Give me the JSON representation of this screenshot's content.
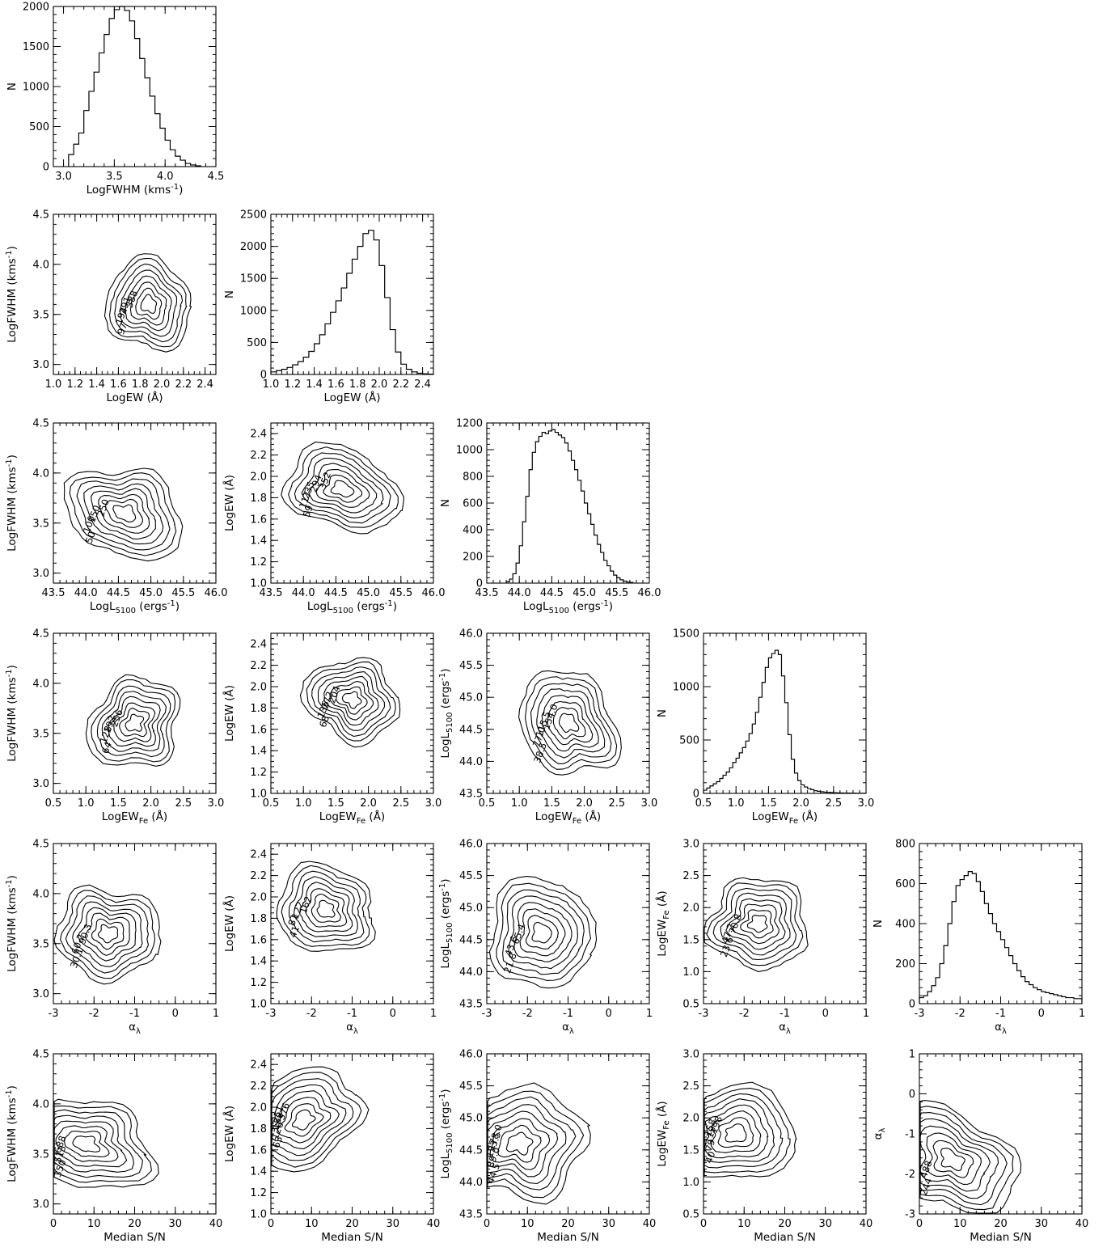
{
  "chart_data": {
    "type": "corner",
    "variables": [
      {
        "label": "LogFWHM (kms",
        "sup": "-1",
        "sub": "",
        "suffix": ")",
        "range": [
          2.9,
          4.5
        ],
        "ticks": [
          "3.0",
          "3.5",
          "4.0",
          "4.5"
        ],
        "tick_values": [
          3.0,
          3.5,
          4.0,
          4.5
        ],
        "minor": 0.1,
        "peak": 3.6,
        "sigma": 0.2
      },
      {
        "label": "LogEW (Å)",
        "sup": "",
        "sub": "",
        "suffix": "",
        "range": [
          1.0,
          2.5
        ],
        "ticks": [
          "1.0",
          "1.2",
          "1.4",
          "1.6",
          "1.8",
          "2.0",
          "2.2",
          "2.4"
        ],
        "tick_values": [
          1.0,
          1.2,
          1.4,
          1.6,
          1.8,
          2.0,
          2.2,
          2.4
        ],
        "minor": 0.05,
        "peak": 1.88,
        "sigma": 0.17
      },
      {
        "label": "LogL",
        "sup": "",
        "sub": "5100",
        "suffix": " (ergs",
        "suffix_sup": "-1",
        "suffix_end": ")",
        "range": [
          43.5,
          46.0
        ],
        "ticks": [
          "43.5",
          "44.0",
          "44.5",
          "45.0",
          "45.5",
          "46.0"
        ],
        "tick_values": [
          43.5,
          44.0,
          44.5,
          45.0,
          45.5,
          46.0
        ],
        "minor": 0.1,
        "peak": 44.6,
        "sigma": 0.38
      },
      {
        "label": "LogEW",
        "sup": "",
        "sub": "Fe",
        "suffix": " (Å)",
        "range": [
          0.5,
          3.0
        ],
        "ticks": [
          "0.5",
          "1.0",
          "1.5",
          "2.0",
          "2.5",
          "3.0"
        ],
        "tick_values": [
          0.5,
          1.0,
          1.5,
          2.0,
          2.5,
          3.0
        ],
        "minor": 0.1,
        "peak": 1.75,
        "sigma": 0.3
      },
      {
        "label": "α",
        "sup": "",
        "sub": "λ",
        "suffix": "",
        "range": [
          -3,
          1
        ],
        "ticks": [
          "-3",
          "-2",
          "-1",
          "0",
          "1"
        ],
        "tick_values": [
          -3,
          -2,
          -1,
          0,
          1
        ],
        "minor": 0.2,
        "peak": -1.65,
        "sigma": 0.55
      },
      {
        "label": "Median S/N",
        "sup": "",
        "sub": "",
        "suffix": "",
        "range": [
          0,
          40
        ],
        "ticks": [
          "0",
          "10",
          "20",
          "30",
          "40"
        ],
        "tick_values": [
          0,
          10,
          20,
          30,
          40
        ],
        "minor": 2,
        "peak": 8,
        "sigma": 7
      }
    ],
    "histograms": [
      {
        "variable": 0,
        "ylabel": "N",
        "ylim": [
          0,
          2000
        ],
        "yticks": [
          0,
          500,
          1000,
          1500,
          2000
        ],
        "x": [
          3.05,
          3.1,
          3.15,
          3.2,
          3.25,
          3.3,
          3.35,
          3.4,
          3.45,
          3.5,
          3.55,
          3.6,
          3.65,
          3.7,
          3.75,
          3.8,
          3.85,
          3.9,
          3.95,
          4.0,
          4.05,
          4.1,
          4.15,
          4.2,
          4.25,
          4.3
        ],
        "values": [
          150,
          280,
          420,
          700,
          940,
          1180,
          1420,
          1650,
          1850,
          1960,
          2000,
          1950,
          1820,
          1600,
          1350,
          1110,
          880,
          660,
          480,
          330,
          210,
          130,
          80,
          40,
          20,
          10
        ]
      },
      {
        "variable": 1,
        "ylabel": "N",
        "ylim": [
          0,
          2500
        ],
        "yticks": [
          0,
          500,
          1000,
          1500,
          2000,
          2500
        ],
        "x": [
          1.0,
          1.05,
          1.1,
          1.15,
          1.2,
          1.25,
          1.3,
          1.35,
          1.4,
          1.45,
          1.5,
          1.55,
          1.6,
          1.65,
          1.7,
          1.75,
          1.8,
          1.85,
          1.9,
          1.95,
          2.0,
          2.05,
          2.1,
          2.15,
          2.2,
          2.25,
          2.3,
          2.35,
          2.4,
          2.45
        ],
        "values": [
          40,
          60,
          80,
          110,
          150,
          200,
          270,
          360,
          480,
          620,
          790,
          970,
          1150,
          1350,
          1580,
          1800,
          2000,
          2200,
          2250,
          2100,
          1700,
          1200,
          700,
          350,
          160,
          80,
          40,
          20,
          10,
          5
        ]
      },
      {
        "variable": 2,
        "ylabel": "N",
        "ylim": [
          0,
          1200
        ],
        "yticks": [
          0,
          200,
          400,
          600,
          800,
          1000,
          1200
        ],
        "x": [
          43.8,
          43.85,
          43.9,
          43.95,
          44.0,
          44.05,
          44.1,
          44.15,
          44.2,
          44.25,
          44.3,
          44.35,
          44.4,
          44.45,
          44.5,
          44.55,
          44.6,
          44.65,
          44.7,
          44.75,
          44.8,
          44.85,
          44.9,
          44.95,
          45.0,
          45.05,
          45.1,
          45.15,
          45.2,
          45.25,
          45.3,
          45.35,
          45.4,
          45.45,
          45.5,
          45.55,
          45.6,
          45.65,
          45.7
        ],
        "values": [
          10,
          30,
          70,
          150,
          280,
          460,
          650,
          850,
          980,
          1060,
          1100,
          1130,
          1120,
          1140,
          1150,
          1130,
          1110,
          1090,
          1050,
          990,
          920,
          850,
          770,
          690,
          600,
          520,
          440,
          360,
          290,
          230,
          170,
          130,
          90,
          60,
          40,
          25,
          15,
          8,
          5
        ]
      },
      {
        "variable": 3,
        "ylabel": "N",
        "ylim": [
          0,
          1500
        ],
        "yticks": [
          0,
          500,
          1000,
          1500
        ],
        "x": [
          0.5,
          0.55,
          0.6,
          0.65,
          0.7,
          0.75,
          0.8,
          0.85,
          0.9,
          0.95,
          1.0,
          1.05,
          1.1,
          1.15,
          1.2,
          1.25,
          1.3,
          1.35,
          1.4,
          1.45,
          1.5,
          1.55,
          1.6,
          1.65,
          1.7,
          1.75,
          1.8,
          1.85,
          1.9,
          1.95,
          2.0,
          2.05,
          2.1,
          2.15,
          2.2,
          2.25,
          2.3,
          2.35,
          2.4,
          2.45,
          2.5,
          2.55,
          2.6,
          2.65,
          2.7,
          2.75,
          2.8,
          2.85,
          2.9,
          2.95
        ],
        "values": [
          30,
          50,
          70,
          90,
          110,
          140,
          170,
          200,
          240,
          290,
          330,
          380,
          430,
          490,
          560,
          650,
          760,
          900,
          1040,
          1180,
          1270,
          1310,
          1340,
          1300,
          1100,
          850,
          550,
          320,
          190,
          120,
          80,
          60,
          45,
          35,
          25,
          20,
          15,
          12,
          10,
          8,
          6,
          5,
          4,
          3,
          3,
          2,
          2,
          1,
          1,
          1
        ]
      },
      {
        "variable": 4,
        "ylabel": "N",
        "ylim": [
          0,
          800
        ],
        "yticks": [
          0,
          200,
          400,
          600,
          800
        ],
        "x": [
          -3.0,
          -2.9,
          -2.8,
          -2.7,
          -2.6,
          -2.5,
          -2.4,
          -2.3,
          -2.2,
          -2.1,
          -2.0,
          -1.9,
          -1.8,
          -1.7,
          -1.6,
          -1.5,
          -1.4,
          -1.3,
          -1.2,
          -1.1,
          -1.0,
          -0.9,
          -0.8,
          -0.7,
          -0.6,
          -0.5,
          -0.4,
          -0.3,
          -0.2,
          -0.1,
          0.0,
          0.1,
          0.2,
          0.3,
          0.4,
          0.5,
          0.6,
          0.7,
          0.8,
          0.9
        ],
        "values": [
          30,
          40,
          60,
          90,
          130,
          200,
          290,
          400,
          510,
          590,
          620,
          640,
          660,
          650,
          610,
          560,
          500,
          450,
          400,
          360,
          320,
          280,
          240,
          200,
          165,
          135,
          110,
          95,
          80,
          70,
          60,
          55,
          50,
          45,
          40,
          35,
          30,
          30,
          25,
          25
        ]
      }
    ],
    "contour_panels": [
      {
        "row": 1,
        "col": 0,
        "x_var": 1,
        "y_var": 0,
        "levels": [
          "97",
          "194",
          "291",
          "388"
        ]
      },
      {
        "row": 2,
        "col": 0,
        "x_var": 2,
        "y_var": 0,
        "levels": [
          "50",
          "100",
          "150",
          "250"
        ]
      },
      {
        "row": 2,
        "col": 1,
        "x_var": 2,
        "y_var": 1,
        "levels": [
          "59",
          "117",
          "235",
          "294",
          "352"
        ]
      },
      {
        "row": 3,
        "col": 0,
        "x_var": 3,
        "y_var": 0,
        "levels": [
          "64",
          "128",
          "192",
          "256"
        ]
      },
      {
        "row": 3,
        "col": 1,
        "x_var": 3,
        "y_var": 1,
        "levels": [
          "68",
          "136",
          "272",
          "204"
        ]
      },
      {
        "row": 3,
        "col": 2,
        "x_var": 3,
        "y_var": 2,
        "levels": [
          "38.5",
          "77.0",
          "115.5",
          "154.0"
        ]
      },
      {
        "row": 4,
        "col": 0,
        "x_var": 4,
        "y_var": 0,
        "levels": [
          "30.1",
          "60.2",
          "90.3"
        ]
      },
      {
        "row": 4,
        "col": 1,
        "x_var": 4,
        "y_var": 1,
        "levels": [
          "41",
          "81",
          "122",
          "162"
        ]
      },
      {
        "row": 4,
        "col": 2,
        "x_var": 4,
        "y_var": 2,
        "levels": [
          "21.8",
          "43.6",
          "65.4"
        ]
      },
      {
        "row": 4,
        "col": 3,
        "x_var": 4,
        "y_var": 3,
        "levels": [
          "23.6",
          "47.2",
          "70.8"
        ]
      },
      {
        "row": 5,
        "col": 0,
        "x_var": 5,
        "y_var": 0,
        "levels": [
          "350",
          "513",
          "688"
        ]
      },
      {
        "row": 5,
        "col": 1,
        "x_var": 5,
        "y_var": 1,
        "levels": [
          "63",
          "126",
          "188",
          "251",
          "376"
        ]
      },
      {
        "row": 5,
        "col": 2,
        "x_var": 5,
        "y_var": 2,
        "levels": [
          "44.5",
          "89.0",
          "133.5",
          "178.0"
        ]
      },
      {
        "row": 5,
        "col": 3,
        "x_var": 5,
        "y_var": 3,
        "levels": [
          "40",
          "79",
          "119",
          "158",
          "198"
        ]
      },
      {
        "row": 5,
        "col": 4,
        "x_var": 5,
        "y_var": 4,
        "levels": [
          "244",
          "488"
        ]
      }
    ]
  }
}
